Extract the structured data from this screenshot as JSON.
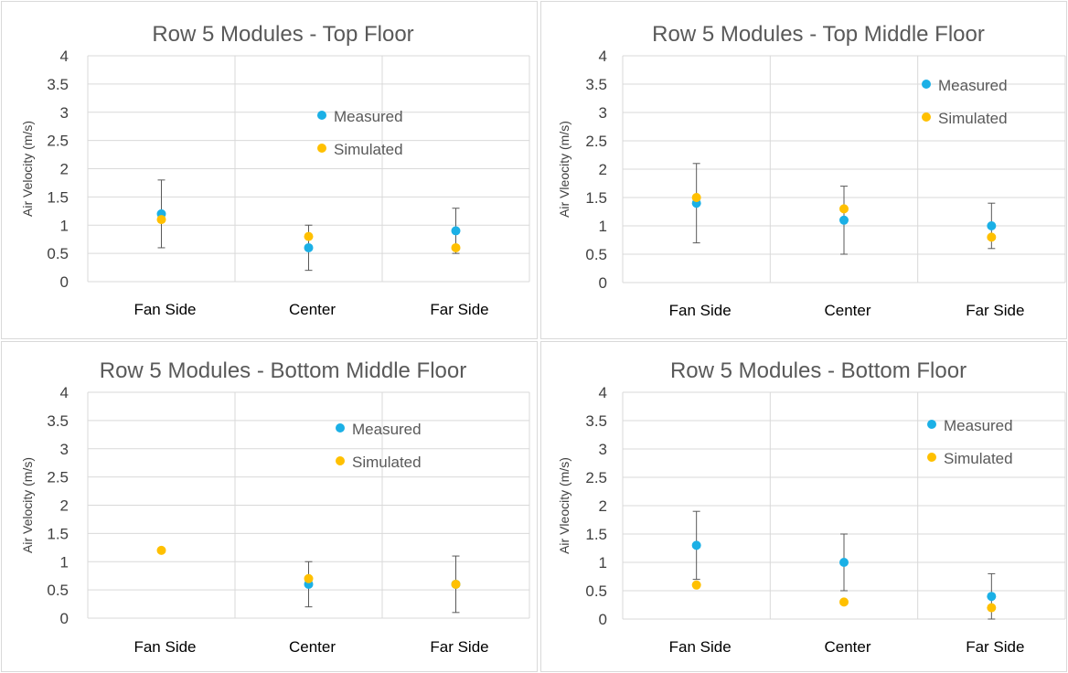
{
  "colors": {
    "measured": "#1bb0e6",
    "simulated": "#ffc000",
    "grid": "#d9d9d9",
    "errorbar": "#595959"
  },
  "chart_data": [
    {
      "type": "scatter",
      "title": "Row 5 Modules - Top Floor",
      "ylabel": "Air Velocity (m/s)",
      "categories": [
        "Fan Side",
        "Center",
        "Far Side"
      ],
      "ylim": [
        0,
        4
      ],
      "yticks": [
        "0",
        "0.5",
        "1",
        "1.5",
        "2",
        "2.5",
        "3",
        "3.5",
        "4"
      ],
      "legend_position": "top-right",
      "series": [
        {
          "name": "Measured",
          "values": [
            1.2,
            0.6,
            0.9
          ],
          "error_low": [
            0.6,
            0.2,
            0.5
          ],
          "error_high": [
            1.8,
            1.0,
            1.3
          ]
        },
        {
          "name": "Simulated",
          "values": [
            1.1,
            0.8,
            0.6
          ]
        }
      ]
    },
    {
      "type": "scatter",
      "title": "Row 5 Modules - Top Middle Floor",
      "ylabel": "Air Vleocity (m/s)",
      "categories": [
        "Fan Side",
        "Center",
        "Far Side"
      ],
      "ylim": [
        0,
        4
      ],
      "yticks": [
        "0",
        "0.5",
        "1",
        "1.5",
        "2",
        "2.5",
        "3",
        "3.5",
        "4"
      ],
      "legend_position": "top-right",
      "series": [
        {
          "name": "Measured",
          "values": [
            1.4,
            1.1,
            1.0
          ],
          "error_low": [
            0.7,
            0.5,
            0.6
          ],
          "error_high": [
            2.1,
            1.7,
            1.4
          ]
        },
        {
          "name": "Simulated",
          "values": [
            1.5,
            1.3,
            0.8
          ]
        }
      ]
    },
    {
      "type": "scatter",
      "title": "Row 5 Modules - Bottom Middle Floor",
      "ylabel": "Air Velocity (m/s)",
      "categories": [
        "Fan Side",
        "Center",
        "Far Side"
      ],
      "ylim": [
        0,
        4
      ],
      "yticks": [
        "0",
        "0.5",
        "1",
        "1.5",
        "2",
        "2.5",
        "3",
        "3.5",
        "4"
      ],
      "legend_position": "top-right",
      "series": [
        {
          "name": "Measured",
          "values": [
            null,
            0.6,
            0.6
          ],
          "error_low": [
            null,
            0.2,
            0.1
          ],
          "error_high": [
            null,
            1.0,
            1.1
          ]
        },
        {
          "name": "Simulated",
          "values": [
            1.2,
            0.7,
            0.6
          ]
        }
      ]
    },
    {
      "type": "scatter",
      "title": "Row 5 Modules - Bottom Floor",
      "ylabel": "Air Vleocity (m/s)",
      "categories": [
        "Fan Side",
        "Center",
        "Far Side"
      ],
      "ylim": [
        0,
        4
      ],
      "yticks": [
        "0",
        "0.5",
        "1",
        "1.5",
        "2",
        "2.5",
        "3",
        "3.5",
        "4"
      ],
      "legend_position": "top-right",
      "series": [
        {
          "name": "Measured",
          "values": [
            1.3,
            1.0,
            0.4
          ],
          "error_low": [
            0.7,
            0.5,
            0.0
          ],
          "error_high": [
            1.9,
            1.5,
            0.8
          ]
        },
        {
          "name": "Simulated",
          "values": [
            0.6,
            0.3,
            0.2
          ]
        }
      ]
    }
  ]
}
